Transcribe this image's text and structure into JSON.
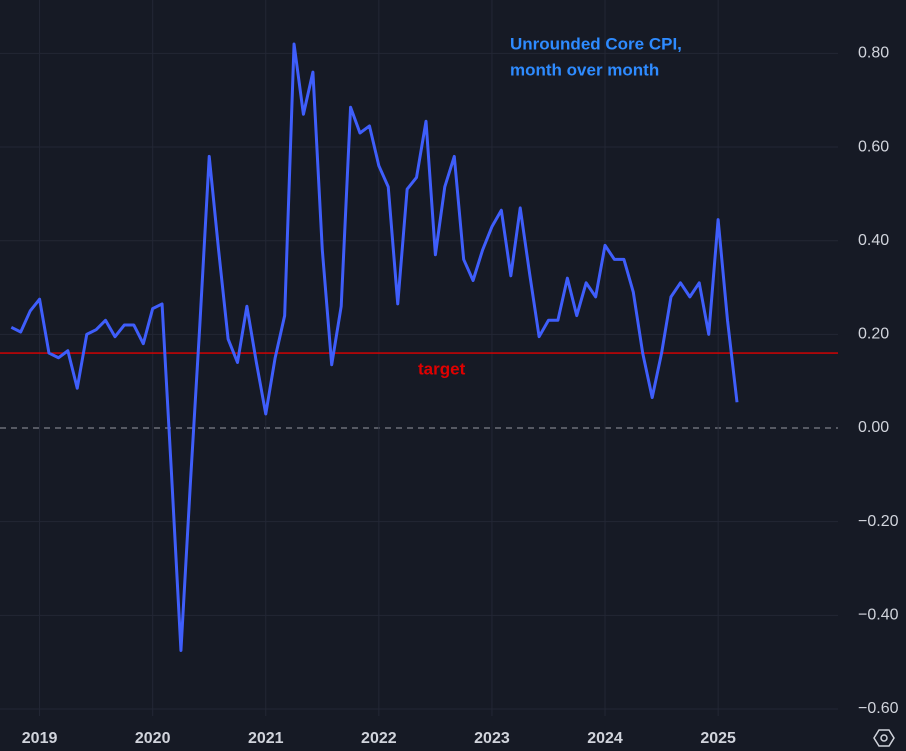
{
  "chart_data": {
    "type": "line",
    "title": [
      "Unrounded Core CPI,",
      "month over month"
    ],
    "x": [
      2018.75,
      2018.833,
      2018.917,
      2019,
      2019.083,
      2019.167,
      2019.25,
      2019.333,
      2019.417,
      2019.5,
      2019.583,
      2019.667,
      2019.75,
      2019.833,
      2019.917,
      2020,
      2020.083,
      2020.167,
      2020.25,
      2020.333,
      2020.417,
      2020.5,
      2020.583,
      2020.667,
      2020.75,
      2020.833,
      2020.917,
      2021,
      2021.083,
      2021.167,
      2021.25,
      2021.333,
      2021.417,
      2021.5,
      2021.583,
      2021.667,
      2021.75,
      2021.833,
      2021.917,
      2022,
      2022.083,
      2022.167,
      2022.25,
      2022.333,
      2022.417,
      2022.5,
      2022.583,
      2022.667,
      2022.75,
      2022.833,
      2022.917,
      2023,
      2023.083,
      2023.167,
      2023.25,
      2023.333,
      2023.417,
      2023.5,
      2023.583,
      2023.667,
      2023.75,
      2023.833,
      2023.917,
      2024,
      2024.083,
      2024.167,
      2024.25,
      2024.333,
      2024.417,
      2024.5,
      2024.583,
      2024.667,
      2024.75,
      2024.833,
      2024.917,
      2025,
      2025.083,
      2025.167
    ],
    "series": [
      {
        "color": "#3f5efb",
        "values": [
          0.215,
          0.205,
          0.25,
          0.275,
          0.16,
          0.15,
          0.165,
          0.085,
          0.2,
          0.21,
          0.23,
          0.195,
          0.22,
          0.22,
          0.18,
          0.255,
          0.265,
          -0.1,
          -0.475,
          -0.12,
          0.22,
          0.58,
          0.38,
          0.19,
          0.14,
          0.26,
          0.14,
          0.03,
          0.15,
          0.24,
          0.82,
          0.67,
          0.76,
          0.38,
          0.135,
          0.26,
          0.685,
          0.63,
          0.645,
          0.56,
          0.515,
          0.265,
          0.51,
          0.535,
          0.655,
          0.37,
          0.515,
          0.58,
          0.36,
          0.315,
          0.38,
          0.43,
          0.465,
          0.325,
          0.47,
          0.33,
          0.195,
          0.23,
          0.23,
          0.32,
          0.24,
          0.31,
          0.28,
          0.39,
          0.36,
          0.36,
          0.29,
          0.16,
          0.065,
          0.16,
          0.28,
          0.31,
          0.28,
          0.31,
          0.2,
          0.445,
          0.23,
          0.055
        ]
      }
    ],
    "hlines": [
      {
        "value": 0.16,
        "label": "target",
        "color": "#e00000"
      }
    ],
    "xlim": [
      2018.65,
      2026.06
    ],
    "xticks": [
      2019,
      2020,
      2021,
      2022,
      2023,
      2024,
      2025
    ],
    "ylim": [
      -0.615,
      0.914
    ],
    "yticks": [
      {
        "value": 0.8,
        "label": "0.80"
      },
      {
        "value": 0.6,
        "label": "0.60"
      },
      {
        "value": 0.4,
        "label": "0.40"
      },
      {
        "value": 0.2,
        "label": "0.20"
      },
      {
        "value": 0,
        "label": "0.00"
      },
      {
        "value": -0.2,
        "label": "−0.20"
      },
      {
        "value": -0.4,
        "label": "−0.40"
      },
      {
        "value": -0.6,
        "label": "−0.60"
      }
    ],
    "grid": true,
    "zero_line_dashed": true
  }
}
